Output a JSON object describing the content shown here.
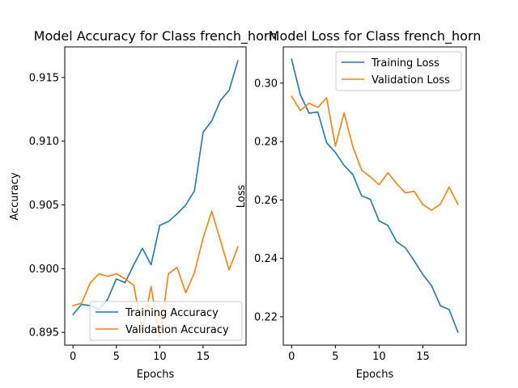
{
  "chart_data": [
    {
      "type": "line",
      "title": "Model Accuracy for Class french_horn",
      "xlabel": "Epochs",
      "ylabel": "Accuracy",
      "xlim": [
        -0.95,
        19.95
      ],
      "ylim": [
        0.894,
        0.9174
      ],
      "xticks": [
        0,
        5,
        10,
        15
      ],
      "yticks": [
        0.895,
        0.9,
        0.905,
        0.91,
        0.915
      ],
      "ytick_labels": [
        "0.895",
        "0.900",
        "0.905",
        "0.910",
        "0.915"
      ],
      "legend_position": "lower-right",
      "x": [
        0,
        1,
        2,
        3,
        4,
        5,
        6,
        7,
        8,
        9,
        10,
        11,
        12,
        13,
        14,
        15,
        16,
        17,
        18,
        19
      ],
      "series": [
        {
          "name": "Training Accuracy",
          "color": "#1f77b4",
          "values": [
            0.8964,
            0.8972,
            0.8971,
            0.8968,
            0.8976,
            0.8992,
            0.8989,
            0.9003,
            0.9016,
            0.9003,
            0.9034,
            0.9037,
            0.9043,
            0.905,
            0.9061,
            0.9107,
            0.9116,
            0.9132,
            0.914,
            0.9163
          ]
        },
        {
          "name": "Validation Accuracy",
          "color": "#ff7f0e",
          "values": [
            0.8971,
            0.8973,
            0.8989,
            0.8996,
            0.8994,
            0.8996,
            0.8992,
            0.8987,
            0.8951,
            0.8986,
            0.8946,
            0.8996,
            0.9001,
            0.8981,
            0.8997,
            0.9024,
            0.9045,
            0.9022,
            0.8999,
            0.9017
          ]
        }
      ]
    },
    {
      "type": "line",
      "title": "Model Loss for Class french_horn",
      "xlabel": "Epochs",
      "ylabel": "Loss",
      "xlim": [
        -0.95,
        19.95
      ],
      "ylim": [
        0.2103,
        0.3124
      ],
      "xticks": [
        0,
        5,
        10,
        15
      ],
      "yticks": [
        0.22,
        0.24,
        0.26,
        0.28,
        0.3
      ],
      "ytick_labels": [
        "0.22",
        "0.24",
        "0.26",
        "0.28",
        "0.30"
      ],
      "legend_position": "upper-right",
      "x": [
        0,
        1,
        2,
        3,
        4,
        5,
        6,
        7,
        8,
        9,
        10,
        11,
        12,
        13,
        14,
        15,
        16,
        17,
        18,
        19
      ],
      "series": [
        {
          "name": "Training Loss",
          "color": "#1f77b4",
          "values": [
            0.3082,
            0.296,
            0.2897,
            0.2901,
            0.2796,
            0.2763,
            0.2718,
            0.2687,
            0.2614,
            0.2602,
            0.2528,
            0.2513,
            0.2457,
            0.2436,
            0.2392,
            0.2345,
            0.2306,
            0.2238,
            0.2225,
            0.2148
          ]
        },
        {
          "name": "Validation Loss",
          "color": "#ff7f0e",
          "values": [
            0.2955,
            0.2906,
            0.2931,
            0.2917,
            0.295,
            0.2784,
            0.2898,
            0.2782,
            0.2702,
            0.2679,
            0.2652,
            0.2693,
            0.2656,
            0.2624,
            0.263,
            0.2584,
            0.2565,
            0.2586,
            0.2644,
            0.2585
          ]
        }
      ]
    }
  ]
}
